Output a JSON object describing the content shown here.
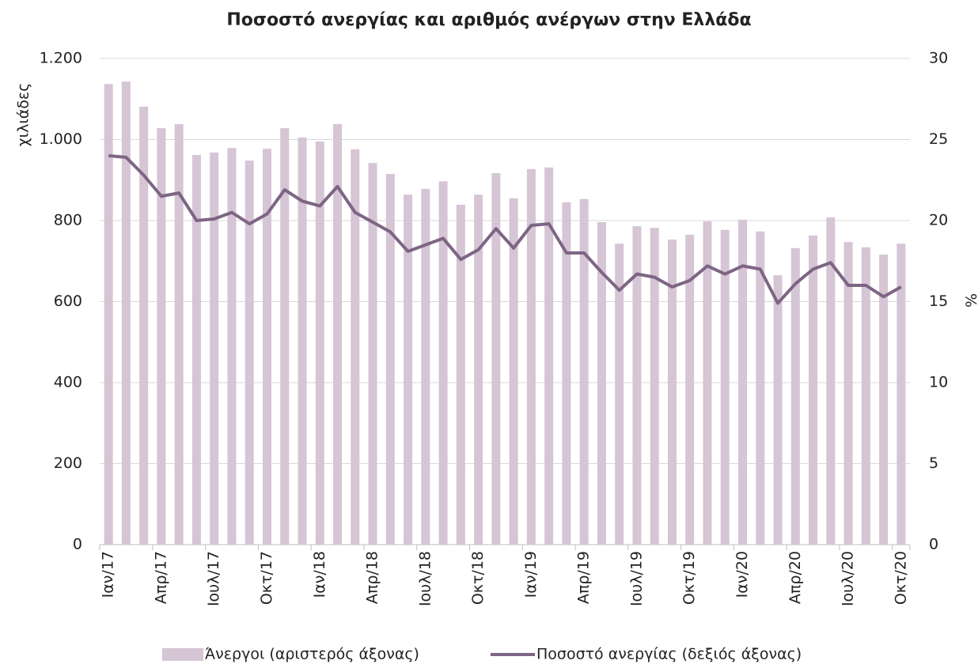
{
  "chart_data": {
    "type": "bar_line",
    "title": "Ποσοστό ανεργίας και αριθμός ανέργων στην Ελλάδα",
    "y_label": "χιλιάδες",
    "y2_label": "%",
    "categories": [
      "Ιαν/17",
      null,
      null,
      "Απρ/17",
      null,
      null,
      "Ιουλ/17",
      null,
      null,
      "Οκτ/17",
      null,
      null,
      "Ιαν/18",
      null,
      null,
      "Απρ/18",
      null,
      null,
      "Ιουλ/18",
      null,
      null,
      "Οκτ/18",
      null,
      null,
      "Ιαν/19",
      null,
      null,
      "Απρ/19",
      null,
      null,
      "Ιουλ/19",
      null,
      null,
      "Οκτ/19",
      null,
      null,
      "Ιαν/20",
      null,
      null,
      "Απρ/20",
      null,
      null,
      "Ιουλ/20",
      null,
      null,
      "Οκτ/20"
    ],
    "series": [
      {
        "name": "Άνεργοι (αριστερός άξονας)",
        "type": "bar",
        "color": "#d5c5d5",
        "axis": "y",
        "values": [
          1137,
          1143,
          1081,
          1028,
          1038,
          962,
          968,
          979,
          948,
          977,
          1028,
          1005,
          995,
          1038,
          976,
          942,
          915,
          864,
          878,
          897,
          839,
          864,
          917,
          855,
          927,
          931,
          845,
          853,
          796,
          743,
          786,
          782,
          753,
          765,
          798,
          777,
          802,
          773,
          665,
          732,
          763,
          808,
          747,
          734,
          716,
          743
        ]
      },
      {
        "name": "Ποσοστό ανεργίας (δεξιός άξονας)",
        "type": "line",
        "color": "#7e6584",
        "axis": "y2",
        "values": [
          24.0,
          23.9,
          22.8,
          21.5,
          21.7,
          20.0,
          20.1,
          20.5,
          19.8,
          20.4,
          21.9,
          21.2,
          20.9,
          22.1,
          20.5,
          19.9,
          19.3,
          18.1,
          18.5,
          18.9,
          17.6,
          18.2,
          19.5,
          18.3,
          19.7,
          19.8,
          18.0,
          18.0,
          16.8,
          15.7,
          16.7,
          16.5,
          15.9,
          16.3,
          17.2,
          16.7,
          17.2,
          17.0,
          14.9,
          16.1,
          17.0,
          17.4,
          16.0,
          16.0,
          15.3,
          15.9
        ]
      }
    ],
    "ylim": [
      0,
      1200
    ],
    "yticks": [
      0,
      200,
      400,
      600,
      800,
      {
        "value": 1000,
        "label": "1.000"
      },
      {
        "value": 1200,
        "label": "1.200"
      }
    ],
    "y2lim": [
      0,
      30
    ],
    "y2ticks": [
      0,
      5,
      10,
      15,
      20,
      25,
      30
    ],
    "grid": true,
    "legend": "bottom"
  }
}
